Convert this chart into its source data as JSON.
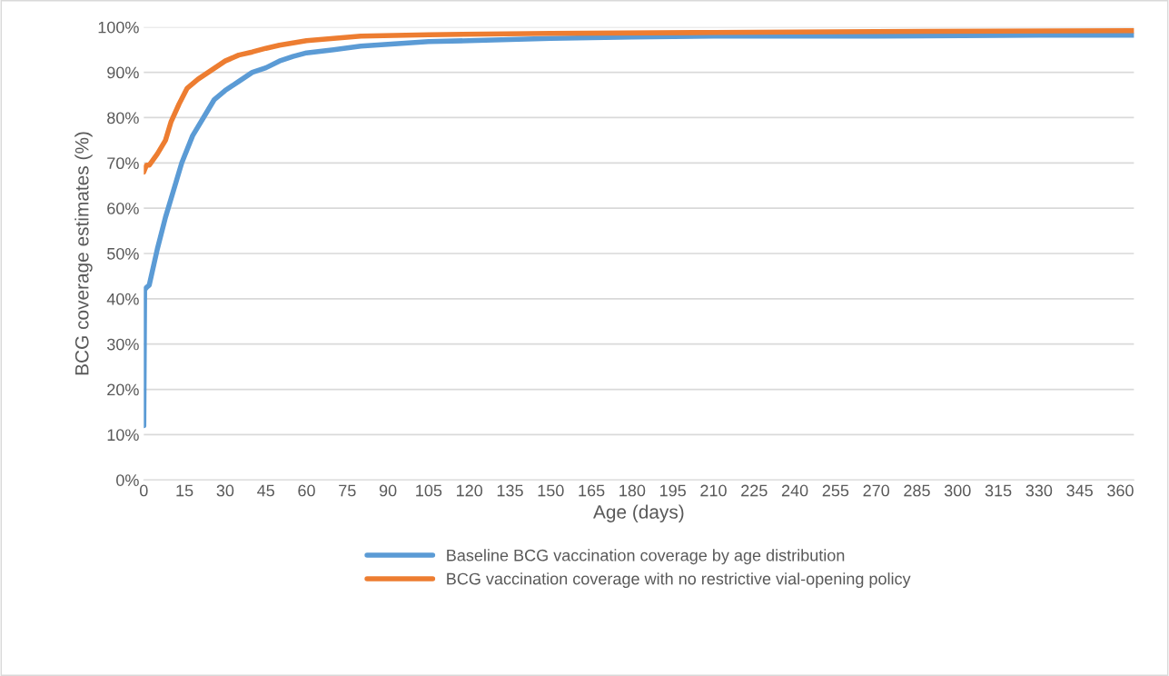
{
  "chart_data": {
    "type": "line",
    "xlabel": "Age (days)",
    "ylabel": "BCG coverage estimates (%)",
    "xlim": [
      0,
      365
    ],
    "xticks": [
      0,
      15,
      30,
      45,
      60,
      75,
      90,
      105,
      120,
      135,
      150,
      165,
      180,
      195,
      210,
      225,
      240,
      255,
      270,
      285,
      300,
      315,
      330,
      345,
      360
    ],
    "ylim": [
      0,
      100
    ],
    "yticks": [
      {
        "value": 0,
        "label": "0%"
      },
      {
        "value": 10,
        "label": "10%"
      },
      {
        "value": 20,
        "label": "20%"
      },
      {
        "value": 30,
        "label": "30%"
      },
      {
        "value": 40,
        "label": "40%"
      },
      {
        "value": 50,
        "label": "50%"
      },
      {
        "value": 60,
        "label": "60%"
      },
      {
        "value": 70,
        "label": "70%"
      },
      {
        "value": 80,
        "label": "80%"
      },
      {
        "value": 90,
        "label": "90%"
      },
      {
        "value": 100,
        "label": "100%"
      }
    ],
    "grid": "y",
    "legend": "bottom",
    "marker": "none",
    "line_style": "solid",
    "series": [
      {
        "name": "Baseline BCG vaccination coverage by age distribution",
        "color": "#5b9bd5",
        "x": [
          0,
          0.3,
          1,
          2,
          5,
          8,
          12,
          14,
          18,
          22,
          26,
          30,
          35,
          40,
          45,
          50,
          55,
          60,
          70,
          80,
          90,
          105,
          120,
          150,
          180,
          210,
          270,
          330,
          365
        ],
        "values": [
          12,
          42,
          42.5,
          43,
          51,
          58,
          66,
          70,
          76,
          80,
          84,
          86,
          88,
          90,
          91,
          92.5,
          93.5,
          94.3,
          95,
          95.8,
          96.2,
          96.8,
          97,
          97.5,
          97.8,
          98,
          98,
          98.2,
          98.2
        ]
      },
      {
        "name": "BCG vaccination coverage with no restrictive vial-opening policy",
        "color": "#ed7d31",
        "x": [
          0,
          1,
          2,
          5,
          8,
          10,
          13,
          16,
          20,
          25,
          30,
          35,
          40,
          45,
          50,
          60,
          70,
          80,
          105,
          150,
          210,
          270,
          365
        ],
        "values": [
          68,
          69.5,
          69.5,
          72,
          75,
          79,
          83,
          86.5,
          88.5,
          90.5,
          92.5,
          93.8,
          94.5,
          95.3,
          96,
          97,
          97.5,
          98,
          98.3,
          98.6,
          98.8,
          99,
          99.2
        ]
      }
    ]
  }
}
